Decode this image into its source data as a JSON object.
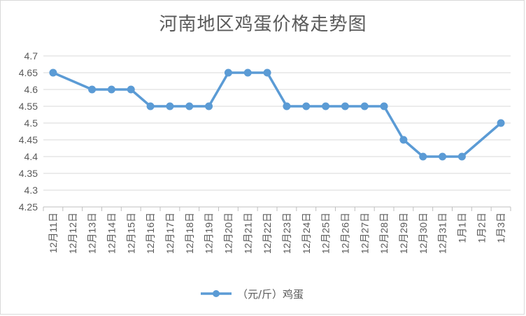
{
  "chart_data": {
    "type": "line",
    "title": "河南地区鸡蛋价格走势图",
    "xlabel": "",
    "ylabel": "",
    "ylim": [
      4.25,
      4.7
    ],
    "y_ticks": [
      "4.25",
      "4.3",
      "4.35",
      "4.4",
      "4.45",
      "4.5",
      "4.55",
      "4.6",
      "4.65",
      "4.7"
    ],
    "grid": true,
    "legend_position": "bottom",
    "categories": [
      "12月11日",
      "12月12日",
      "12月13日",
      "12月14日",
      "12月15日",
      "12月16日",
      "12月17日",
      "12月18日",
      "12月19日",
      "12月20日",
      "12月21日",
      "12月22日",
      "12月23日",
      "12月24日",
      "12月25日",
      "12月26日",
      "12月27日",
      "12月28日",
      "12月29日",
      "12月30日",
      "12月31日",
      "1月1日",
      "1月2日",
      "1月3日"
    ],
    "series": [
      {
        "name": "（元/斤）鸡蛋",
        "color": "#5b9bd5",
        "values": [
          4.65,
          null,
          4.6,
          4.6,
          4.6,
          4.55,
          4.55,
          4.55,
          4.55,
          4.65,
          4.65,
          4.65,
          4.55,
          4.55,
          4.55,
          4.55,
          4.55,
          4.55,
          4.45,
          4.4,
          4.4,
          4.4,
          null,
          4.5
        ]
      }
    ]
  }
}
